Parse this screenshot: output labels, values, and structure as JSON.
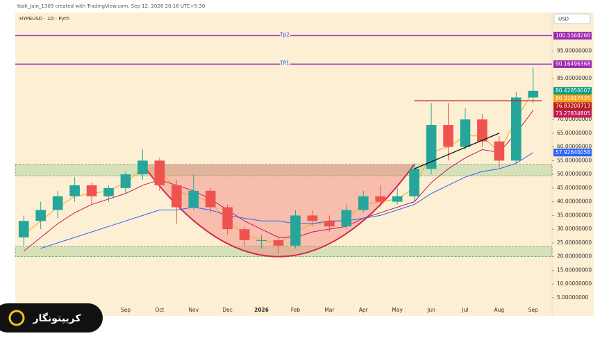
{
  "header": {
    "credit": "Yash_Jain_1309 created with TradingView.com, Sep 12, 2026 20:16 UTC+5:30",
    "symbol": "HYPEUSD · 1D · Pyth",
    "currency": "USD"
  },
  "watermark": "کریپتونگار",
  "chart_data": {
    "type": "candlestick",
    "categories": [
      null,
      null,
      null,
      null,
      null,
      null,
      "Sep",
      null,
      "Oct",
      null,
      "Nov",
      null,
      "Dec",
      null,
      "2026",
      null,
      "Feb",
      null,
      "Mar",
      null,
      "Apr",
      null,
      "May",
      null,
      "Jun",
      null,
      "Jul",
      null,
      "Aug",
      null,
      "Sep"
    ],
    "open": [
      27,
      33,
      37,
      42,
      46,
      42,
      45,
      50,
      55,
      46,
      38,
      44,
      38,
      30,
      26,
      26,
      24,
      35,
      33,
      31,
      37,
      42,
      40,
      42,
      52,
      68,
      60,
      70,
      62,
      55,
      78
    ],
    "high": [
      35,
      40,
      44,
      49,
      47,
      46,
      51,
      59,
      56,
      48,
      50,
      45,
      39,
      31,
      28,
      27,
      37,
      37,
      35,
      39,
      44,
      46,
      45,
      54,
      76,
      76,
      74,
      72,
      64,
      80,
      89
    ],
    "low": [
      24,
      30,
      34,
      40,
      39,
      40,
      43,
      48,
      44,
      32,
      37,
      36,
      28,
      24,
      23,
      21,
      23,
      31,
      29,
      30,
      36,
      38,
      39,
      40,
      50,
      55,
      59,
      60,
      52,
      54,
      76
    ],
    "close": [
      33,
      37,
      42,
      46,
      42,
      45,
      50,
      55,
      46,
      38,
      44,
      38,
      30,
      26,
      26,
      24,
      35,
      33,
      31,
      37,
      42,
      40,
      42,
      52,
      68,
      60,
      70,
      62,
      55,
      78,
      80.43
    ],
    "up_color": "#26a69a",
    "down_color": "#ef5350",
    "series": [
      {
        "color": "#f7a21b",
        "values": [
          28,
          33,
          38,
          42,
          43,
          44,
          47,
          52,
          52,
          44,
          42,
          40,
          33,
          28,
          26,
          25,
          29,
          32,
          32,
          34,
          39,
          40,
          41,
          45,
          58,
          60,
          64,
          64,
          58,
          70,
          80.32
        ]
      },
      {
        "color": "#c2185b",
        "values": [
          22,
          27,
          32,
          36,
          39,
          41,
          43,
          46,
          48,
          46,
          44,
          41,
          37,
          33,
          30,
          27,
          27,
          29,
          30,
          31,
          34,
          36,
          38,
          40,
          47,
          52,
          56,
          59,
          58,
          65,
          73.28
        ]
      },
      {
        "color": "#2962ff",
        "values": [
          null,
          23,
          25,
          27,
          29,
          31,
          33,
          35,
          37,
          37,
          38,
          37,
          35,
          34,
          33,
          33,
          32,
          32,
          33,
          33,
          34,
          35,
          37,
          39,
          43,
          46,
          49,
          51,
          52,
          54,
          57.93
        ]
      }
    ],
    "ylim": [
      -1.6,
      109
    ],
    "yticks": [
      {
        "value": 5,
        "label": "5.00000000"
      },
      {
        "value": 10,
        "label": "10.00000000"
      },
      {
        "value": 15,
        "label": "15.00000000"
      },
      {
        "value": 20,
        "label": "20.00000000"
      },
      {
        "value": 25,
        "label": "25.00000000"
      },
      {
        "value": 30,
        "label": "30.00000000"
      },
      {
        "value": 35,
        "label": "35.00000000"
      },
      {
        "value": 40,
        "label": "40.00000000"
      },
      {
        "value": 45,
        "label": "45.00000000"
      },
      {
        "value": 50,
        "label": "50.00000000"
      },
      {
        "value": 55,
        "label": "55.00000000"
      },
      {
        "value": 60,
        "label": "60.00000000"
      },
      {
        "value": 65,
        "label": "65.00000000"
      },
      {
        "value": 70,
        "label": "70.00000000"
      },
      {
        "value": 85,
        "label": "85.00000000"
      },
      {
        "value": 95,
        "label": "95.00000000"
      }
    ],
    "levels": [
      {
        "value": 100.55682687,
        "label": "Tp2",
        "color": "#9c27b0"
      },
      {
        "value": 90.16496368,
        "label": "TP1",
        "color": "#9c27b0"
      }
    ],
    "price_tags": [
      {
        "value": 80.42850007,
        "color": "#089981"
      },
      {
        "value": 80.31917435,
        "color": "#f7a21b"
      },
      {
        "value": 76.83200713,
        "color": "#b71c1c",
        "line_from": 23
      },
      {
        "value": 73.27834805,
        "color": "#c2185b"
      },
      {
        "value": 57.92640058,
        "color": "#2962ff"
      }
    ],
    "zones": [
      [
        49.5,
        53.6
      ],
      [
        20,
        23.7
      ]
    ],
    "cup": {
      "from": 7,
      "to": 23,
      "top": 53.6,
      "bottom": 20
    },
    "trendline": {
      "from": [
        23,
        52
      ],
      "to": [
        28,
        65
      ]
    }
  }
}
